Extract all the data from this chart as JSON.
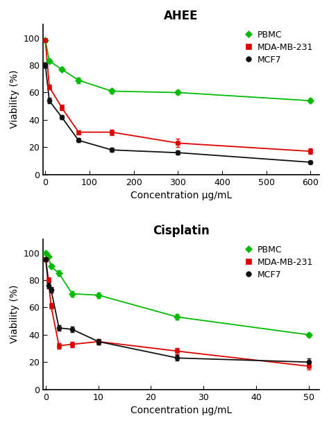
{
  "ahee": {
    "title": "AHEE",
    "xlabel": "Concentration μg/mL",
    "ylabel": "Viability (%)",
    "xlim": [
      -5,
      620
    ],
    "ylim": [
      0,
      110
    ],
    "xticks": [
      0,
      100,
      200,
      300,
      400,
      500,
      600
    ],
    "yticks": [
      0,
      20,
      40,
      60,
      80,
      100
    ],
    "series": [
      {
        "label": "PBMC",
        "color": "#00bb00",
        "marker": "D",
        "markersize": 5,
        "x": [
          0,
          9,
          37,
          75,
          150,
          300,
          600
        ],
        "y": [
          98,
          83,
          77,
          69,
          61,
          60,
          54
        ],
        "yerr": [
          1.0,
          1.5,
          1.5,
          2.0,
          2.0,
          1.5,
          1.5
        ]
      },
      {
        "label": "MDA-MB-231",
        "color": "#dd0000",
        "marker": "s",
        "markersize": 5,
        "x": [
          0,
          9,
          37,
          75,
          150,
          300,
          600
        ],
        "y": [
          98,
          64,
          49,
          31,
          31,
          23,
          17
        ],
        "yerr": [
          1.0,
          2.0,
          2.0,
          1.5,
          2.0,
          3.0,
          2.0
        ]
      },
      {
        "label": "MCF7",
        "color": "#111111",
        "marker": "o",
        "markersize": 5,
        "x": [
          0,
          9,
          37,
          75,
          150,
          300,
          600
        ],
        "y": [
          80,
          54,
          42,
          25,
          18,
          16,
          9
        ],
        "yerr": [
          2.0,
          2.0,
          1.5,
          1.5,
          1.5,
          1.5,
          1.0
        ]
      }
    ]
  },
  "cisplatin": {
    "title": "Cisplatin",
    "xlabel": "Concentration μg/mL",
    "ylabel": "Viability (%)",
    "xlim": [
      -0.5,
      52
    ],
    "ylim": [
      0,
      110
    ],
    "xticks": [
      0,
      10,
      20,
      30,
      40,
      50
    ],
    "yticks": [
      0,
      20,
      40,
      60,
      80,
      100
    ],
    "series": [
      {
        "label": "PBMC",
        "color": "#00bb00",
        "marker": "D",
        "markersize": 5,
        "x": [
          0,
          0.5,
          1.0,
          2.5,
          5.0,
          10,
          25,
          50
        ],
        "y": [
          100,
          97,
          90,
          85,
          70,
          69,
          53,
          40
        ],
        "yerr": [
          1.0,
          1.0,
          1.5,
          2.0,
          2.0,
          2.0,
          2.0,
          1.5
        ]
      },
      {
        "label": "MDA-MB-231",
        "color": "#dd0000",
        "marker": "s",
        "markersize": 5,
        "x": [
          0,
          0.5,
          1.0,
          2.5,
          5.0,
          10,
          25,
          50
        ],
        "y": [
          95,
          80,
          61,
          32,
          33,
          35,
          28,
          17
        ],
        "yerr": [
          1.5,
          2.0,
          2.0,
          2.0,
          2.0,
          2.0,
          2.5,
          2.5
        ]
      },
      {
        "label": "MCF7",
        "color": "#111111",
        "marker": "o",
        "markersize": 5,
        "x": [
          0,
          0.5,
          1.0,
          2.5,
          5.0,
          10,
          25,
          50
        ],
        "y": [
          95,
          76,
          73,
          45,
          44,
          35,
          23,
          20
        ],
        "yerr": [
          1.5,
          2.0,
          2.0,
          2.0,
          2.0,
          2.0,
          2.0,
          2.5
        ]
      }
    ]
  },
  "background_color": "#ffffff"
}
